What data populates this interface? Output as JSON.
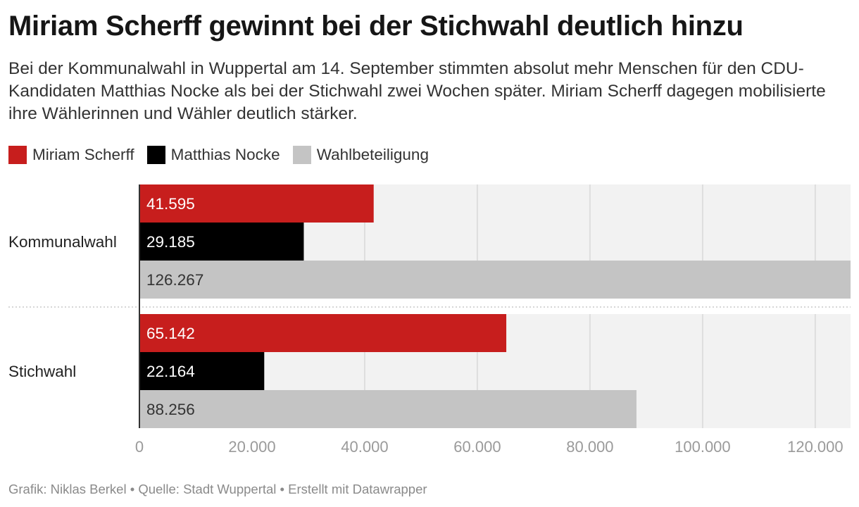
{
  "title": "Miriam Scherff gewinnt bei der Stichwahl deutlich hinzu",
  "subtitle": "Bei der Kommunalwahl in Wuppertal am 14. September stimmten absolut mehr Menschen für den CDU-Kandidaten Matthias Nocke als bei der Stichwahl zwei Wochen später. Miriam Scherff dagegen mobilisierte ihre Wählerinnen und Wähler deutlich stärker.",
  "footer": "Grafik: Niklas Berkel • Quelle: Stadt Wuppertal • Erstellt mit Datawrapper",
  "colors": {
    "scherff": "#c71e1d",
    "nocke": "#000000",
    "beteiligung": "#c4c4c4",
    "plot_background": "#f2f2f2",
    "gridline": "#dedede",
    "axis_label": "#9a9a9a"
  },
  "chart_data": {
    "type": "bar",
    "orientation": "horizontal",
    "categories": [
      "Kommunalwahl",
      "Stichwahl"
    ],
    "series": [
      {
        "name": "Miriam Scherff",
        "color": "#c71e1d",
        "values": [
          41595,
          65142
        ],
        "labels": [
          "41.595",
          "65.142"
        ],
        "label_color": "#ffffff"
      },
      {
        "name": "Matthias Nocke",
        "color": "#000000",
        "values": [
          29185,
          22164
        ],
        "labels": [
          "29.185",
          "22.164"
        ],
        "label_color": "#ffffff"
      },
      {
        "name": "Wahlbeteiligung",
        "color": "#c4c4c4",
        "values": [
          126267,
          88256
        ],
        "labels": [
          "126.267",
          "88.256"
        ],
        "label_color": "#333333"
      }
    ],
    "xlim": [
      0,
      126267
    ],
    "xticks": [
      0,
      20000,
      40000,
      60000,
      80000,
      100000,
      120000
    ],
    "xtick_labels": [
      "0",
      "20.000",
      "40.000",
      "60.000",
      "80.000",
      "100.000",
      "120.000"
    ],
    "grid": true,
    "legend_position": "top-left"
  }
}
